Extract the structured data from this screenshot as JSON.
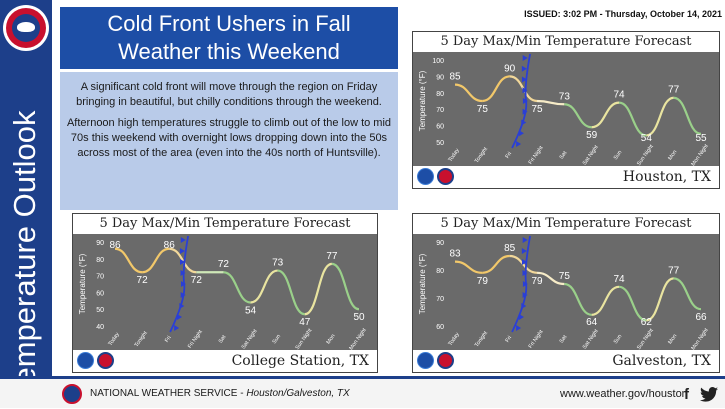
{
  "sidebar": {
    "title": "Temperature Outlook",
    "logo_text": "NATIONAL WEATHER SERVICE"
  },
  "header": {
    "title_line1": "Cold Front Ushers in Fall",
    "title_line2": "Weather this Weekend",
    "issued": "ISSUED: 3:02 PM - Thursday, October 14, 2021"
  },
  "description": {
    "paragraph1": "A significant cold front will move through the region on Friday bringing in beautiful, but chilly conditions through the weekend.",
    "paragraph2": "Afternoon high temperatures struggle to climb out of the low to mid 70s this weekend with overnight lows dropping down into the 50s across most of the area (even into the 40s north of Huntsville)."
  },
  "colors": {
    "brand_blue": "#1d3f8a",
    "title_blue": "#1d4ea6",
    "warm_line": "#f2c86a",
    "cool_line": "#7ac47a",
    "front": "#2a3fd6"
  },
  "chart_data": [
    {
      "type": "line",
      "title": "5 Day Max/Min Temperature Forecast",
      "location": "Houston, TX",
      "ylabel": "Temperature (°F)",
      "ylim": [
        50,
        100
      ],
      "yticks": [
        50,
        60,
        70,
        80,
        90,
        100
      ],
      "categories": [
        "Today",
        "Tonight",
        "Fri",
        "Fri Night",
        "Sat",
        "Sat Night",
        "Sun",
        "Sun Night",
        "Mon",
        "Mon Night"
      ],
      "values": [
        85,
        75,
        90,
        75,
        73,
        59,
        74,
        54,
        77,
        55
      ],
      "front_index": 2.6
    },
    {
      "type": "line",
      "title": "5 Day Max/Min Temperature Forecast",
      "location": "College Station, TX",
      "ylabel": "Temperature (°F)",
      "ylim": [
        40,
        90
      ],
      "yticks": [
        40,
        50,
        60,
        70,
        80,
        90
      ],
      "categories": [
        "Today",
        "Tonight",
        "Fri",
        "Fri Night",
        "Sat",
        "Sat Night",
        "Sun",
        "Sun Night",
        "Mon",
        "Mon Night"
      ],
      "values": [
        86,
        72,
        86,
        72,
        72,
        54,
        73,
        47,
        77,
        50
      ],
      "front_index": 2.55
    },
    {
      "type": "line",
      "title": "5 Day Max/Min Temperature Forecast",
      "location": "Galveston, TX",
      "ylabel": "Temperature (°F)",
      "ylim": [
        60,
        90
      ],
      "yticks": [
        60,
        70,
        80,
        90
      ],
      "categories": [
        "Today",
        "Tonight",
        "Fri",
        "Fri Night",
        "Sat",
        "Sat Night",
        "Sun",
        "Sun Night",
        "Mon",
        "Mon Night"
      ],
      "values": [
        83,
        79,
        85,
        79,
        75,
        64,
        74,
        62,
        77,
        66
      ],
      "front_index": 2.6
    }
  ],
  "footer": {
    "agency": "NATIONAL WEATHER SERVICE",
    "office": "Houston/Galveston, TX",
    "url": "www.weather.gov/houston",
    "facebook_icon": "facebook-icon",
    "twitter_icon": "twitter-icon"
  }
}
